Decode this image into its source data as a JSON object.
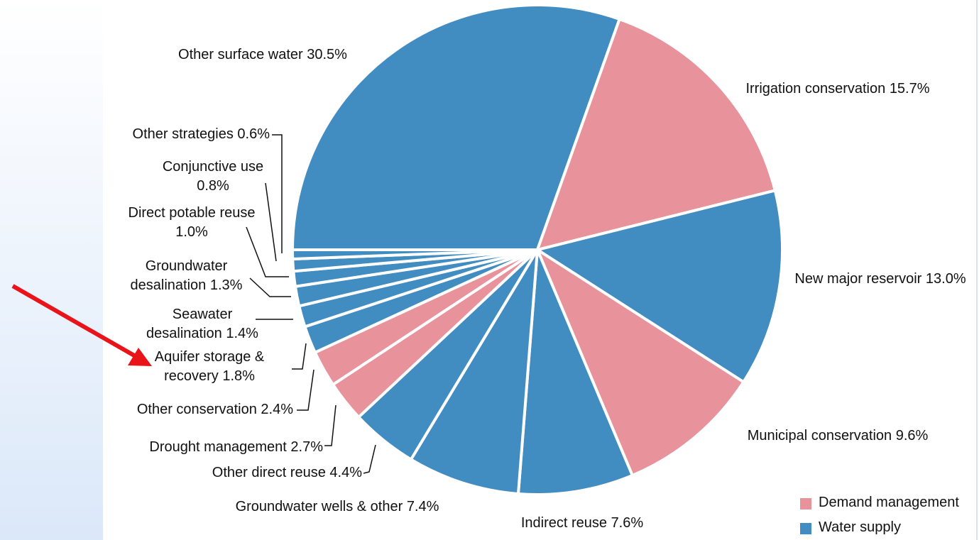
{
  "chart_data": {
    "type": "pie",
    "categories": [
      "Other surface water",
      "Irrigation conservation",
      "New major reservoir",
      "Municipal conservation",
      "Indirect reuse",
      "Groundwater wells & other",
      "Other direct reuse",
      "Drought management",
      "Other conservation",
      "Aquifer storage & recovery",
      "Seawater desalination",
      "Groundwater desalination",
      "Direct potable reuse",
      "Conjunctive use",
      "Other strategies"
    ],
    "values": [
      30.5,
      15.7,
      13.0,
      9.6,
      7.6,
      7.4,
      4.4,
      2.7,
      2.4,
      1.8,
      1.4,
      1.3,
      1.0,
      0.8,
      0.6
    ],
    "value_labels": [
      "30.5%",
      "15.7%",
      "13.0%",
      "9.6%",
      "7.6%",
      "7.4%",
      "4.4%",
      "2.7%",
      "2.4%",
      "1.8%",
      "1.4%",
      "1.3%",
      "1.0%",
      "0.8%",
      "0.6%"
    ],
    "colors": [
      "#418cc0",
      "#e8929b",
      "#418cc0",
      "#e8929b",
      "#418cc0",
      "#418cc0",
      "#418cc0",
      "#e8929b",
      "#e8929b",
      "#418cc0",
      "#418cc0",
      "#418cc0",
      "#418cc0",
      "#418cc0",
      "#418cc0"
    ],
    "legend": [
      {
        "name": "Demand management",
        "color": "#e8929b"
      },
      {
        "name": "Water supply",
        "color": "#418cc0"
      }
    ]
  }
}
